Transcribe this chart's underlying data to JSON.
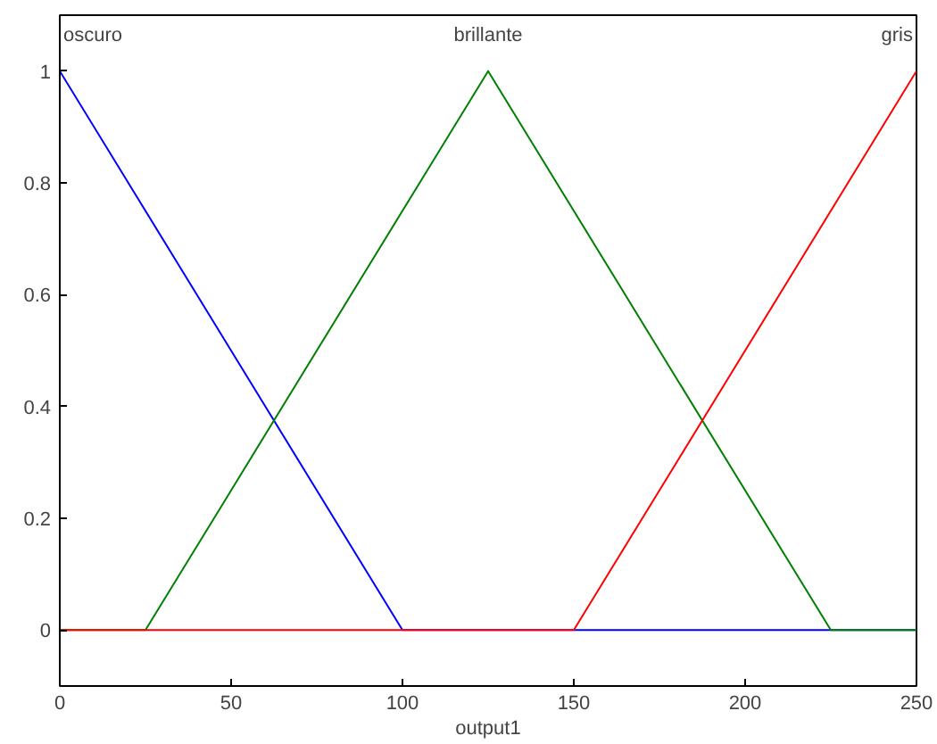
{
  "chart_data": {
    "type": "line",
    "xlabel": "output1",
    "xlim": [
      0,
      250
    ],
    "ylim": [
      -0.1,
      1.1
    ],
    "xticks": [
      0,
      50,
      100,
      150,
      200,
      250
    ],
    "yticks": [
      0,
      0.2,
      0.4,
      0.6,
      0.8,
      1
    ],
    "grid": false,
    "marker": "none",
    "line_style": "solid",
    "series": [
      {
        "name": "oscuro",
        "color": "#0000ff",
        "x": [
          0,
          100,
          250
        ],
        "values": [
          1,
          0,
          0
        ]
      },
      {
        "name": "brillante",
        "color": "#008000",
        "x": [
          0,
          25,
          125,
          225,
          250
        ],
        "values": [
          0,
          0,
          1,
          0,
          0
        ]
      },
      {
        "name": "gris",
        "color": "#ff0000",
        "x": [
          0,
          150,
          250
        ],
        "values": [
          0,
          0,
          1
        ]
      }
    ]
  }
}
